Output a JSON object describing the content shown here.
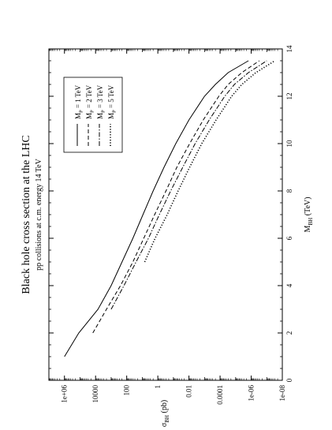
{
  "chart_data": {
    "type": "line",
    "title": "Black hole cross section at the LHC",
    "subtitle": "pp collisions at c.m. energy 14 TeV",
    "xlabel": "M",
    "xlabel_sub": "BH",
    "xlabel_unit": " (TeV)",
    "ylabel": "σ",
    "ylabel_sub": "BH",
    "ylabel_unit": " (pb)",
    "xlim": [
      0,
      14
    ],
    "ylim_log10": [
      -8,
      7
    ],
    "y_scale": "log",
    "orientation": "rotated 90° counter-clockwise",
    "x_ticks": [
      "0",
      "2",
      "4",
      "6",
      "8",
      "10",
      "12",
      "14"
    ],
    "y_ticks": [
      "1e-08",
      "1e-06",
      "0.0001",
      "0.01",
      "1",
      "100",
      "10000",
      "1e+06"
    ],
    "grid": false,
    "legend_position": "top-left",
    "series": [
      {
        "name": "M",
        "name_sub": "P",
        "name_rest": " = 1 TeV",
        "style": "solid",
        "x": [
          1,
          2,
          3,
          4,
          5,
          6,
          7,
          8,
          9,
          10,
          11,
          12,
          12.5,
          13,
          13.5
        ],
        "y": [
          1000000,
          120000,
          7000,
          1000,
          200,
          40,
          9,
          2,
          0.4,
          0.07,
          0.01,
          0.001,
          0.0002,
          3e-05,
          1.5e-06
        ]
      },
      {
        "name": "M",
        "name_sub": "P",
        "name_rest": " = 2 TeV",
        "style": "dash",
        "x": [
          2,
          3,
          4,
          5,
          6,
          7,
          8,
          9,
          10,
          11,
          12,
          12.5,
          13,
          13.5
        ],
        "y": [
          15000,
          2000,
          250,
          40,
          8,
          1.6,
          0.3,
          0.06,
          0.009,
          0.0012,
          0.00012,
          3e-05,
          4e-06,
          3e-07
        ]
      },
      {
        "name": "M",
        "name_sub": "P",
        "name_rest": " = 3 TeV",
        "style": "dashdot",
        "x": [
          3,
          4,
          5,
          6,
          7,
          8,
          9,
          10,
          11,
          12,
          12.5,
          13,
          13.5
        ],
        "y": [
          1000,
          150,
          25,
          4,
          0.8,
          0.15,
          0.025,
          0.004,
          0.0005,
          5e-05,
          1.2e-05,
          1.5e-06,
          1e-07
        ]
      },
      {
        "name": "M",
        "name_sub": "P",
        "name_rest": " = 5 TeV",
        "style": "dot",
        "x": [
          5,
          6,
          7,
          8,
          9,
          10,
          11,
          12,
          12.5,
          13,
          13.5
        ],
        "y": [
          7,
          1.5,
          0.25,
          0.05,
          0.009,
          0.0015,
          0.00018,
          1.8e-05,
          4e-06,
          5e-07,
          3e-08
        ]
      }
    ]
  }
}
